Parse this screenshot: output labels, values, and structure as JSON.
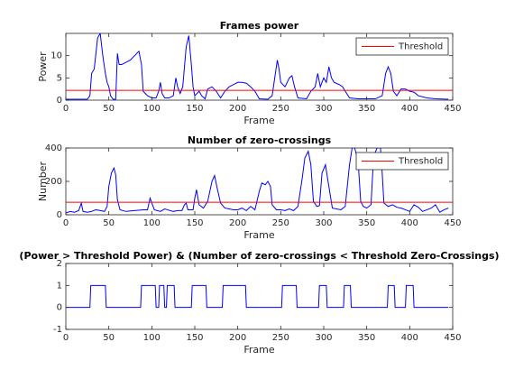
{
  "chart_data": [
    {
      "type": "line",
      "title": "Frames power",
      "xlabel": "Frame",
      "ylabel": "Power",
      "color": "#0000ff",
      "x": [
        0,
        25,
        28,
        30,
        33,
        37,
        40,
        43,
        46,
        48,
        50,
        52,
        55,
        58,
        60,
        62,
        65,
        70,
        75,
        80,
        85,
        88,
        90,
        95,
        100,
        105,
        108,
        110,
        112,
        115,
        120,
        125,
        128,
        130,
        133,
        136,
        140,
        143,
        146,
        148,
        150,
        155,
        158,
        162,
        165,
        170,
        175,
        180,
        185,
        190,
        195,
        200,
        205,
        210,
        215,
        220,
        225,
        235,
        240,
        243,
        246,
        248,
        250,
        255,
        260,
        263,
        266,
        270,
        280,
        285,
        290,
        293,
        296,
        300,
        303,
        306,
        309,
        312,
        318,
        322,
        325,
        330,
        340,
        350,
        360,
        368,
        372,
        375,
        378,
        381,
        385,
        390,
        395,
        400,
        405,
        410,
        420,
        430,
        445
      ],
      "values": [
        0.2,
        0.2,
        1,
        6,
        7,
        14,
        15,
        10,
        6,
        4,
        3,
        1,
        0.2,
        0.2,
        10.5,
        8,
        8,
        8.5,
        9,
        10,
        11,
        8,
        2,
        1,
        0.5,
        0.5,
        2,
        4,
        1.5,
        0.5,
        0.5,
        1,
        5,
        3,
        1.5,
        3,
        12,
        14.5,
        8,
        3,
        1,
        2,
        1,
        0.3,
        2.5,
        3,
        2,
        0.5,
        2,
        3,
        3.5,
        4,
        4,
        3.8,
        3,
        2,
        0.3,
        0.2,
        1,
        5,
        9,
        7,
        4,
        3,
        5,
        5.5,
        3,
        0.5,
        0.3,
        2,
        3,
        6,
        3,
        5,
        4,
        7.5,
        5,
        4,
        3.5,
        3,
        2,
        0.5,
        0.3,
        0.3,
        0.3,
        1,
        6,
        7.5,
        6,
        2,
        1,
        2.5,
        2.5,
        2,
        1.8,
        1,
        0.5,
        0.3,
        0.2
      ],
      "threshold": {
        "name": "Threshold",
        "value": 2.2,
        "color": "#ff0000"
      },
      "legend": "northeast",
      "xlim": [
        0,
        450
      ],
      "xticks": [
        0,
        50,
        100,
        150,
        200,
        250,
        300,
        350,
        400,
        450
      ],
      "ylim": [
        0,
        15
      ],
      "yticks": [
        0,
        5,
        10
      ]
    },
    {
      "type": "line",
      "title": "Number of zero-crossings",
      "xlabel": "Frame",
      "ylabel": "Number",
      "color": "#0000ff",
      "x": [
        0,
        5,
        10,
        15,
        18,
        20,
        25,
        30,
        35,
        40,
        45,
        48,
        50,
        53,
        56,
        58,
        60,
        63,
        70,
        80,
        90,
        95,
        98,
        100,
        103,
        110,
        115,
        118,
        125,
        130,
        135,
        138,
        140,
        142,
        148,
        150,
        152,
        155,
        160,
        165,
        170,
        173,
        176,
        180,
        185,
        190,
        195,
        200,
        205,
        210,
        215,
        220,
        225,
        228,
        232,
        235,
        238,
        240,
        245,
        250,
        255,
        260,
        265,
        270,
        275,
        278,
        282,
        285,
        288,
        292,
        295,
        298,
        302,
        305,
        310,
        320,
        325,
        330,
        333,
        336,
        340,
        343,
        346,
        350,
        355,
        358,
        362,
        366,
        368,
        370,
        375,
        380,
        385,
        390,
        395,
        400,
        405,
        410,
        415,
        420,
        425,
        430,
        435,
        440,
        445
      ],
      "values": [
        10,
        20,
        15,
        25,
        70,
        20,
        15,
        20,
        30,
        25,
        20,
        50,
        170,
        250,
        280,
        240,
        90,
        30,
        20,
        25,
        30,
        30,
        100,
        70,
        30,
        20,
        35,
        30,
        20,
        25,
        25,
        60,
        70,
        30,
        30,
        100,
        150,
        60,
        40,
        80,
        200,
        235,
        160,
        70,
        40,
        35,
        30,
        30,
        40,
        25,
        50,
        30,
        140,
        190,
        180,
        200,
        170,
        60,
        30,
        30,
        25,
        35,
        25,
        50,
        220,
        340,
        380,
        300,
        80,
        50,
        55,
        250,
        300,
        200,
        40,
        30,
        50,
        300,
        400,
        400,
        320,
        80,
        50,
        40,
        60,
        350,
        400,
        400,
        250,
        70,
        50,
        60,
        45,
        40,
        30,
        20,
        60,
        45,
        20,
        30,
        40,
        60,
        15,
        30,
        40
      ],
      "threshold": {
        "name": "Threshold",
        "value": 75,
        "color": "#ff0000"
      },
      "legend": "northeast",
      "xlim": [
        0,
        450
      ],
      "xticks": [
        0,
        50,
        100,
        150,
        200,
        250,
        300,
        350,
        400,
        450
      ],
      "ylim": [
        0,
        400
      ],
      "yticks": [
        0,
        200,
        400
      ]
    },
    {
      "type": "line",
      "title": "(Power > Threshold Power) & (Number of zero-crossings < Threshold Zero-Crossings)",
      "xlabel": "Frame",
      "color": "#0000ff",
      "x": [
        0,
        28,
        29,
        46,
        47,
        87,
        88,
        104,
        105,
        108,
        109,
        114,
        115,
        117,
        118,
        126,
        127,
        146,
        147,
        163,
        164,
        182,
        183,
        209,
        210,
        251,
        252,
        268,
        269,
        294,
        295,
        303,
        304,
        323,
        324,
        331,
        332,
        374,
        375,
        382,
        383,
        395,
        396,
        404,
        405,
        445
      ],
      "values": [
        0,
        0,
        1,
        1,
        0,
        0,
        1,
        1,
        0,
        0,
        1,
        1,
        0,
        0,
        1,
        1,
        0,
        0,
        1,
        1,
        0,
        0,
        1,
        1,
        0,
        0,
        1,
        1,
        0,
        0,
        1,
        1,
        0,
        0,
        1,
        1,
        0,
        0,
        1,
        1,
        0,
        0,
        1,
        1,
        0,
        0
      ],
      "xlim": [
        0,
        450
      ],
      "xticks": [
        0,
        50,
        100,
        150,
        200,
        250,
        300,
        350,
        400,
        450
      ],
      "ylim": [
        -1,
        2
      ],
      "yticks": [
        -1,
        0,
        1,
        2
      ]
    }
  ]
}
